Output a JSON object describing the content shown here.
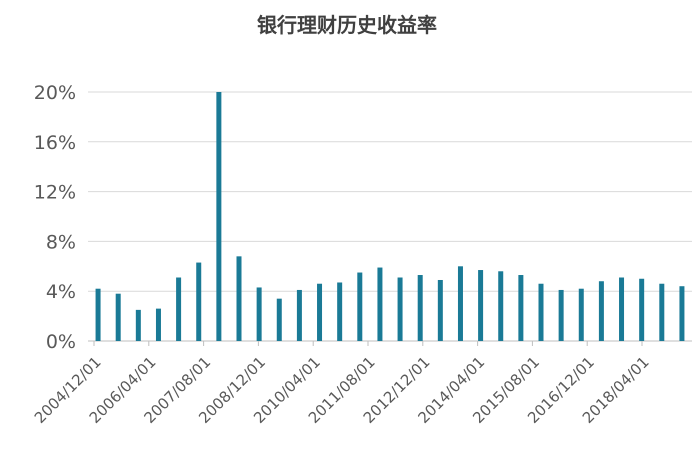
{
  "chart_data": {
    "type": "bar",
    "title": "银行理财历史收益率",
    "xlabel": "",
    "ylabel": "",
    "ylim": [
      0,
      20
    ],
    "yticks": [
      "0%",
      "4%",
      "8%",
      "12%",
      "16%",
      "20%"
    ],
    "ytick_values": [
      0,
      4,
      8,
      12,
      16,
      20
    ],
    "x_tick_labels": [
      "2004/12/01",
      "2006/04/01",
      "2007/08/01",
      "2008/12/01",
      "2010/04/01",
      "2011/08/01",
      "2012/12/01",
      "2014/04/01",
      "2015/08/01",
      "2016/12/01",
      "2018/04/01"
    ],
    "grid": true,
    "legend": "none",
    "bar_color": "#1a7a96",
    "values": [
      4.2,
      3.8,
      2.5,
      2.6,
      5.1,
      6.3,
      20.0,
      6.8,
      4.3,
      3.4,
      4.1,
      4.6,
      4.7,
      5.5,
      5.9,
      5.1,
      5.3,
      4.9,
      6.0,
      5.7,
      5.6,
      5.3,
      4.6,
      4.1,
      4.2,
      4.8,
      5.1,
      5.0,
      4.6,
      4.4
    ]
  }
}
